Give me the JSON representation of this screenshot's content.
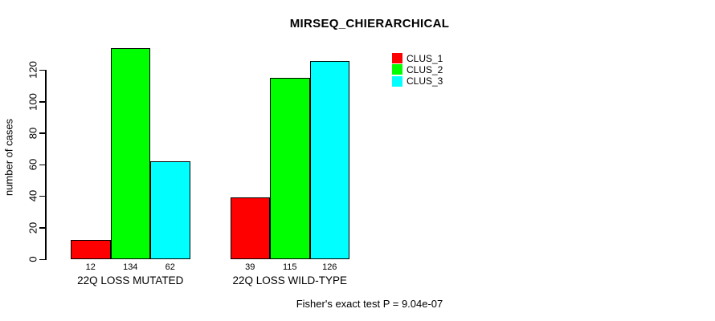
{
  "chart_data": {
    "type": "bar",
    "title": "MIRSEQ_CHIERARCHICAL",
    "ylabel": "number of cases",
    "xlabel": "",
    "categories": [
      "22Q LOSS MUTATED",
      "22Q LOSS WILD-TYPE"
    ],
    "series": [
      {
        "name": "CLUS_1",
        "color": "#FF0000",
        "values": [
          12,
          39
        ]
      },
      {
        "name": "CLUS_2",
        "color": "#00FF00",
        "values": [
          134,
          115
        ]
      },
      {
        "name": "CLUS_3",
        "color": "#00FFFF",
        "values": [
          62,
          126
        ]
      }
    ],
    "show_bar_value_labels": true,
    "yticks": [
      0,
      20,
      40,
      60,
      80,
      100,
      120
    ],
    "ylim": [
      0,
      135
    ],
    "grid": false,
    "legend_position": "top-right",
    "annotation": "Fisher's exact test P = 9.04e-07"
  },
  "colors": {
    "background": "#FFFFFF",
    "text": "#000000",
    "axis": "#000000",
    "clus_1": "#FF0000",
    "clus_2": "#00FF00",
    "clus_3": "#00FFFF"
  }
}
